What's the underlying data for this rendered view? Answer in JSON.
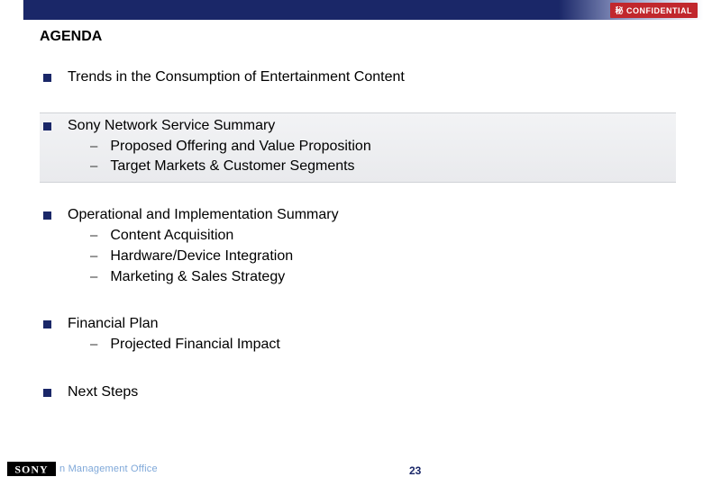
{
  "colors": {
    "navy": "#1a2768",
    "confidential_bg": "#c1272d",
    "footer_text": "#7fa8d9",
    "highlight_top": "#f2f3f5",
    "highlight_bottom": "#e9eaed"
  },
  "header": {
    "confidential_label": "秘 CONFIDENTIAL"
  },
  "title": "AGENDA",
  "agenda": [
    {
      "label": "Trends in the Consumption of Entertainment Content",
      "highlighted": false,
      "subs": []
    },
    {
      "label": "Sony Network Service Summary",
      "highlighted": true,
      "subs": [
        "Proposed Offering and Value Proposition",
        "Target Markets & Customer Segments"
      ]
    },
    {
      "label": "Operational and Implementation Summary",
      "highlighted": false,
      "subs": [
        "Content Acquisition",
        "Hardware/Device Integration",
        "Marketing & Sales Strategy"
      ]
    },
    {
      "label": "Financial Plan",
      "highlighted": false,
      "subs": [
        "Projected Financial Impact"
      ]
    },
    {
      "label": "Next Steps",
      "highlighted": false,
      "subs": []
    }
  ],
  "footer": {
    "logo_text": "SONY",
    "office_text": "n Management Office",
    "page_number": "23"
  }
}
